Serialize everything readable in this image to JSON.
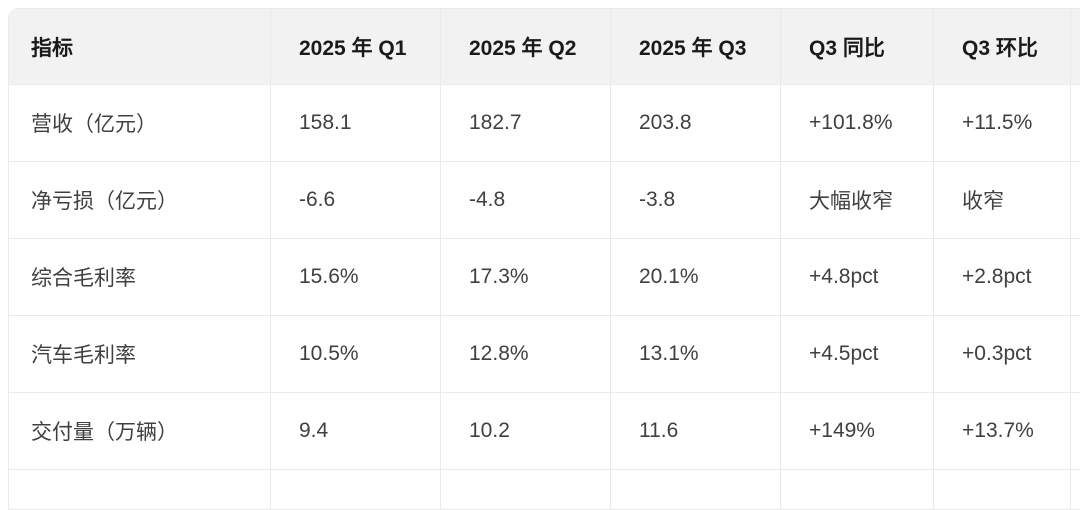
{
  "colors": {
    "header_bg": "#f2f2f3",
    "grid_border": "#e9eaec",
    "header_text": "#1a1a1a",
    "body_text": "#404040"
  },
  "chart_data": {
    "type": "table",
    "columns": [
      "指标",
      "2025 年 Q1",
      "2025 年 Q2",
      "2025 年 Q3",
      "Q3 同比",
      "Q3 环比"
    ],
    "rows": [
      [
        "营收（亿元）",
        "158.1",
        "182.7",
        "203.8",
        "+101.8%",
        "+11.5%"
      ],
      [
        "净亏损（亿元）",
        "-6.6",
        "-4.8",
        "-3.8",
        "大幅收窄",
        "收窄"
      ],
      [
        "综合毛利率",
        "15.6%",
        "17.3%",
        "20.1%",
        "+4.8pct",
        "+2.8pct"
      ],
      [
        "汽车毛利率",
        "10.5%",
        "12.8%",
        "13.1%",
        "+4.5pct",
        "+0.3pct"
      ],
      [
        "交付量（万辆）",
        "9.4",
        "10.2",
        "11.6",
        "+149%",
        "+13.7%"
      ]
    ]
  }
}
